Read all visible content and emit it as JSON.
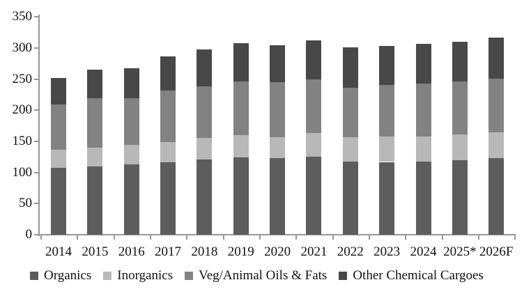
{
  "chart_data": {
    "type": "bar",
    "stacked": true,
    "title": "",
    "xlabel": "",
    "ylabel": "",
    "ylim": [
      0,
      350
    ],
    "yticks": [
      0,
      50,
      100,
      150,
      200,
      250,
      300,
      350
    ],
    "grid": false,
    "legend_position": "bottom",
    "categories": [
      "2014",
      "2015",
      "2016",
      "2017",
      "2018",
      "2019",
      "2020",
      "2021",
      "2022",
      "2023",
      "2024",
      "2025*",
      "2026F"
    ],
    "series": [
      {
        "name": "Organics",
        "color": "#5d5d5d",
        "values": [
          107,
          110,
          113,
          116,
          121,
          124,
          123,
          125,
          118,
          117,
          118,
          120,
          123
        ]
      },
      {
        "name": "Inorganics",
        "color": "#b8b8b8",
        "values": [
          30,
          30,
          32,
          33,
          35,
          36,
          34,
          39,
          39,
          41,
          40,
          41,
          42
        ]
      },
      {
        "name": "Veg/Animal Oils & Fats",
        "color": "#828282",
        "values": [
          73,
          80,
          75,
          83,
          83,
          86,
          88,
          86,
          79,
          83,
          85,
          85,
          86
        ]
      },
      {
        "name": "Other Chemical Cargoes",
        "color": "#484848",
        "values": [
          42,
          45,
          48,
          55,
          59,
          62,
          60,
          63,
          65,
          63,
          64,
          64,
          66
        ]
      }
    ],
    "totals": [
      252,
      265,
      268,
      287,
      298,
      308,
      305,
      313,
      301,
      304,
      307,
      310,
      317
    ]
  },
  "colors": {
    "axis": "#969696",
    "text": "#111111",
    "background": "#ffffff"
  }
}
